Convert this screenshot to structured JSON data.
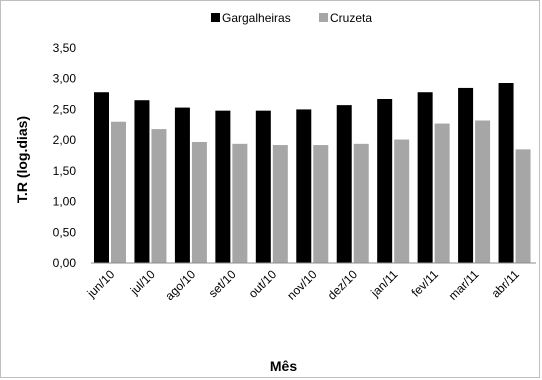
{
  "chart_data": {
    "type": "bar",
    "title": "",
    "xlabel": "Mês",
    "ylabel": "T.R (log.dias)",
    "categories": [
      "jun/10",
      "jul/10",
      "ago/10",
      "set/10",
      "out/10",
      "nov/10",
      "dez/10",
      "jan/11",
      "fev/11",
      "mar/11",
      "abr/11"
    ],
    "series": [
      {
        "name": "Gargalheiras",
        "color": "#000000",
        "values": [
          2.78,
          2.65,
          2.53,
          2.48,
          2.48,
          2.5,
          2.57,
          2.67,
          2.78,
          2.85,
          2.93
        ]
      },
      {
        "name": "Cruzeta",
        "color": "#a6a6a6",
        "values": [
          2.3,
          2.18,
          1.97,
          1.94,
          1.92,
          1.92,
          1.94,
          2.01,
          2.27,
          2.32,
          1.85
        ]
      }
    ],
    "ylim": [
      0,
      3.5
    ],
    "yticks": [
      "0,00",
      "0,50",
      "1,00",
      "1,50",
      "2,00",
      "2,50",
      "3,00",
      "3,50"
    ],
    "grid": false,
    "legend_position": "top-center"
  }
}
